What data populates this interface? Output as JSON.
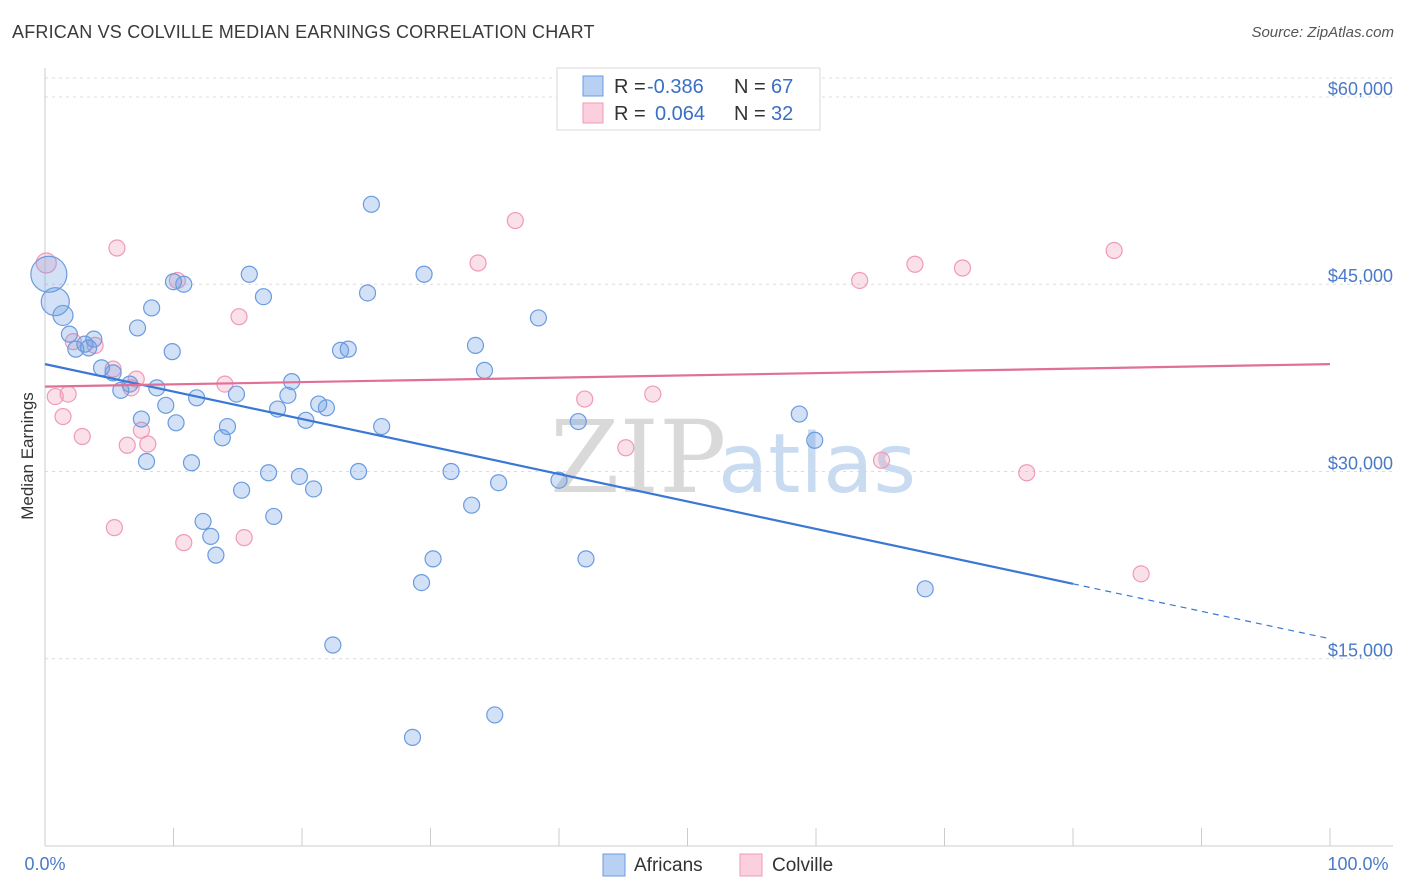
{
  "title": "AFRICAN VS COLVILLE MEDIAN EARNINGS CORRELATION CHART",
  "source": "Source: ZipAtlas.com",
  "watermark": {
    "zip": "ZIP",
    "atlas": "atlas"
  },
  "legend": {
    "rows": [
      {
        "r_label": "R =",
        "r_value": "-0.386",
        "n_label": "N =",
        "n_value": "67"
      },
      {
        "r_label": "R =",
        "r_value": "0.064",
        "n_label": "N =",
        "n_value": "32"
      }
    ]
  },
  "bottom_legend": [
    "Africans",
    "Colville"
  ],
  "chart_data": {
    "type": "scatter",
    "xlabel": "",
    "ylabel": "Median Earnings",
    "xlim": [
      0,
      100
    ],
    "ylim": [
      0,
      62000
    ],
    "x_tick_labels": [
      "0.0%",
      "100.0%"
    ],
    "y_ticks": [
      15000,
      30000,
      45000,
      60000
    ],
    "y_tick_labels": [
      "$15,000",
      "$30,000",
      "$45,000",
      "$60,000"
    ],
    "grid": true,
    "colors": {
      "Africans": "#6a9be0",
      "Colville": "#f09ab6",
      "africans_line": "#3a78d4",
      "colville_line": "#e07098"
    },
    "series": [
      {
        "name": "Africans",
        "r": -0.386,
        "n": 67,
        "trend": {
          "x0": 0,
          "y0": 38600,
          "x1": 80,
          "y1": 21000,
          "dash_to_x": 100,
          "dash_to_y": 16600
        },
        "points": [
          [
            0.3,
            45800,
            18
          ],
          [
            0.8,
            43600,
            14
          ],
          [
            1.4,
            42500,
            10
          ],
          [
            1.9,
            41000,
            8
          ],
          [
            2.4,
            39800,
            8
          ],
          [
            3.1,
            40200,
            8
          ],
          [
            3.8,
            40600,
            8
          ],
          [
            4.4,
            38300,
            8
          ],
          [
            5.3,
            37900,
            8
          ],
          [
            5.9,
            36500,
            8
          ],
          [
            6.6,
            37000,
            8
          ],
          [
            7.2,
            41500,
            8
          ],
          [
            7.5,
            34200,
            8
          ],
          [
            7.9,
            30800,
            8
          ],
          [
            8.3,
            43100,
            8
          ],
          [
            8.7,
            36700,
            8
          ],
          [
            9.4,
            35300,
            8
          ],
          [
            9.9,
            39600,
            8
          ],
          [
            10.2,
            33900,
            8
          ],
          [
            10.8,
            45000,
            8
          ],
          [
            11.4,
            30700,
            8
          ],
          [
            11.8,
            35900,
            8
          ],
          [
            12.3,
            26000,
            8
          ],
          [
            12.9,
            24800,
            8
          ],
          [
            13.3,
            23300,
            8
          ],
          [
            13.8,
            32700,
            8
          ],
          [
            14.2,
            33600,
            8
          ],
          [
            14.9,
            36200,
            8
          ],
          [
            15.3,
            28500,
            8
          ],
          [
            15.9,
            45800,
            8
          ],
          [
            17.0,
            44000,
            8
          ],
          [
            17.4,
            29900,
            8
          ],
          [
            17.8,
            26400,
            8
          ],
          [
            18.1,
            35000,
            8
          ],
          [
            18.9,
            36100,
            8
          ],
          [
            19.2,
            37200,
            8
          ],
          [
            19.8,
            29600,
            8
          ],
          [
            20.3,
            34100,
            8
          ],
          [
            20.9,
            28600,
            8
          ],
          [
            21.3,
            35400,
            8
          ],
          [
            21.9,
            35100,
            8
          ],
          [
            22.4,
            16100,
            8
          ],
          [
            23.0,
            39700,
            8
          ],
          [
            23.6,
            39800,
            8
          ],
          [
            24.4,
            30000,
            8
          ],
          [
            25.1,
            44300,
            8
          ],
          [
            25.4,
            51400,
            8
          ],
          [
            26.2,
            33600,
            8
          ],
          [
            28.6,
            8700,
            8
          ],
          [
            29.3,
            21100,
            8
          ],
          [
            29.5,
            45800,
            8
          ],
          [
            30.2,
            23000,
            8
          ],
          [
            31.6,
            30000,
            8
          ],
          [
            33.2,
            27300,
            8
          ],
          [
            33.5,
            40100,
            8
          ],
          [
            34.2,
            38100,
            8
          ],
          [
            35.0,
            10500,
            8
          ],
          [
            35.3,
            29100,
            8
          ],
          [
            38.4,
            42300,
            8
          ],
          [
            40.0,
            29300,
            8
          ],
          [
            41.5,
            34000,
            8
          ],
          [
            42.1,
            23000,
            8
          ],
          [
            58.7,
            34600,
            8
          ],
          [
            59.9,
            32500,
            8
          ],
          [
            68.5,
            20600,
            8
          ],
          [
            3.4,
            39900,
            8
          ],
          [
            10.0,
            45200,
            8
          ]
        ]
      },
      {
        "name": "Colville",
        "r": 0.064,
        "n": 32,
        "trend": {
          "x0": 0,
          "y0": 36800,
          "x1": 100,
          "y1": 38600
        },
        "points": [
          [
            0.1,
            46700,
            10
          ],
          [
            0.8,
            36000,
            8
          ],
          [
            1.4,
            34400,
            8
          ],
          [
            1.8,
            36200,
            8
          ],
          [
            2.2,
            40400,
            8
          ],
          [
            2.9,
            32800,
            8
          ],
          [
            3.9,
            40100,
            8
          ],
          [
            5.3,
            38200,
            8
          ],
          [
            5.4,
            25500,
            8
          ],
          [
            5.6,
            47900,
            8
          ],
          [
            6.4,
            32100,
            8
          ],
          [
            6.7,
            36700,
            8
          ],
          [
            7.1,
            37400,
            8
          ],
          [
            7.5,
            33300,
            8
          ],
          [
            8.0,
            32200,
            8
          ],
          [
            10.3,
            45300,
            8
          ],
          [
            10.8,
            24300,
            8
          ],
          [
            14.0,
            37000,
            8
          ],
          [
            15.1,
            42400,
            8
          ],
          [
            15.5,
            24700,
            8
          ],
          [
            33.7,
            46700,
            8
          ],
          [
            36.6,
            50100,
            8
          ],
          [
            42.0,
            35800,
            8
          ],
          [
            45.2,
            31900,
            8
          ],
          [
            47.3,
            36200,
            8
          ],
          [
            63.4,
            45300,
            8
          ],
          [
            65.1,
            30900,
            8
          ],
          [
            67.7,
            46600,
            8
          ],
          [
            71.4,
            46300,
            8
          ],
          [
            76.4,
            29900,
            8
          ],
          [
            83.2,
            47700,
            8
          ],
          [
            85.3,
            21800,
            8
          ]
        ]
      }
    ]
  }
}
